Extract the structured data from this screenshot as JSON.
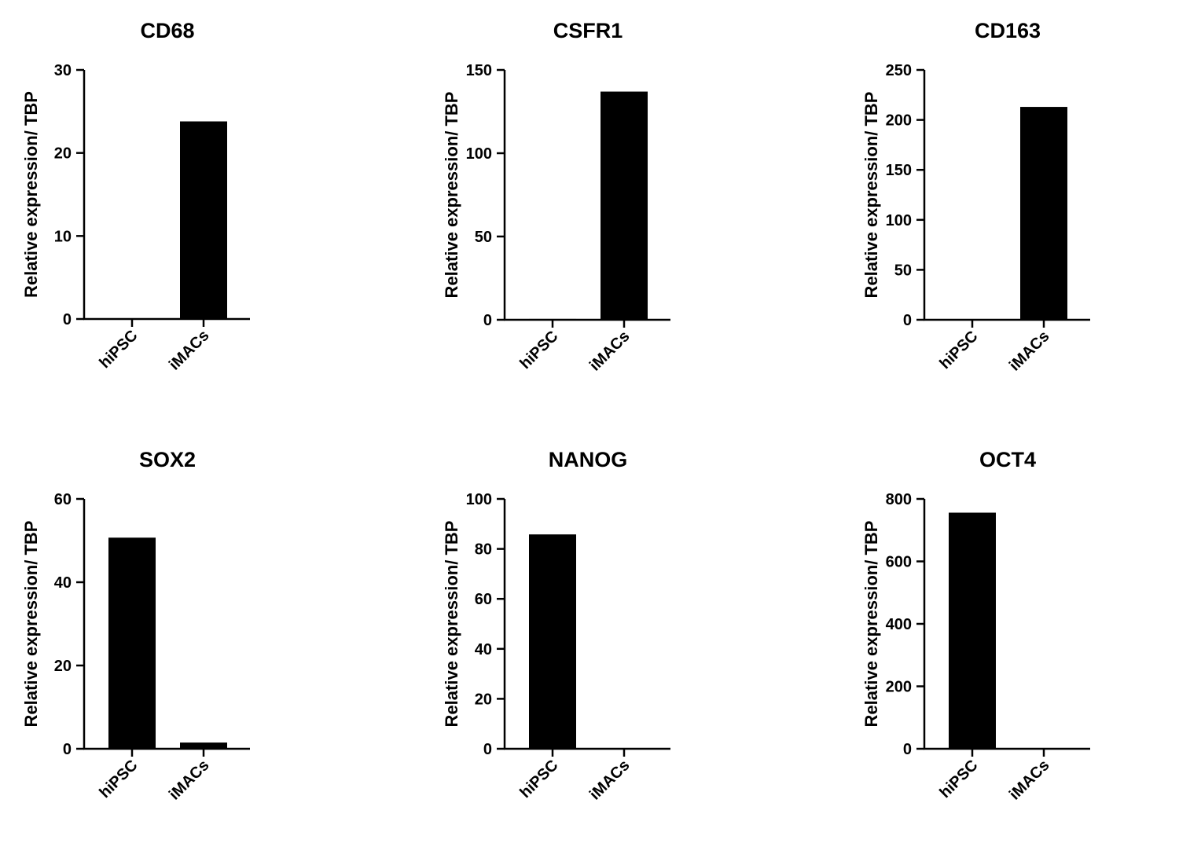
{
  "colors": {
    "bar": "#000000",
    "axis": "#000000",
    "background": "#ffffff"
  },
  "chart_data": [
    {
      "type": "bar",
      "title": "CD68",
      "ylabel": "Relative expression/ TBP",
      "xlabel": "",
      "categories": [
        "hiPSC",
        "iMACs"
      ],
      "values": [
        0,
        23.8
      ],
      "ylim": [
        0,
        30
      ],
      "yticks": [
        0,
        10,
        20,
        30
      ]
    },
    {
      "type": "bar",
      "title": "CSFR1",
      "ylabel": "Relative expression/ TBP",
      "xlabel": "",
      "categories": [
        "hiPSC",
        "iMACs"
      ],
      "values": [
        0.5,
        137
      ],
      "ylim": [
        0,
        150
      ],
      "yticks": [
        0,
        50,
        100,
        150
      ]
    },
    {
      "type": "bar",
      "title": "CD163",
      "ylabel": "Relative expression/ TBP",
      "xlabel": "",
      "categories": [
        "hiPSC",
        "iMACs"
      ],
      "values": [
        0.5,
        213
      ],
      "ylim": [
        0,
        250
      ],
      "yticks": [
        0,
        50,
        100,
        150,
        200,
        250
      ]
    },
    {
      "type": "bar",
      "title": "SOX2",
      "ylabel": "Relative expression/ TBP",
      "xlabel": "",
      "categories": [
        "hiPSC",
        "iMACs"
      ],
      "values": [
        50.7,
        1.5
      ],
      "ylim": [
        0,
        60
      ],
      "yticks": [
        0,
        20,
        40,
        60
      ]
    },
    {
      "type": "bar",
      "title": "NANOG",
      "ylabel": "Relative expression/ TBP",
      "xlabel": "",
      "categories": [
        "hiPSC",
        "iMACs"
      ],
      "values": [
        85.8,
        0.3
      ],
      "ylim": [
        0,
        100
      ],
      "yticks": [
        0,
        20,
        40,
        60,
        80,
        100
      ]
    },
    {
      "type": "bar",
      "title": "OCT4",
      "ylabel": "Relative expression/ TBP",
      "xlabel": "",
      "categories": [
        "hiPSC",
        "iMACs"
      ],
      "values": [
        756,
        1
      ],
      "ylim": [
        0,
        800
      ],
      "yticks": [
        0,
        200,
        400,
        600,
        800
      ]
    }
  ]
}
